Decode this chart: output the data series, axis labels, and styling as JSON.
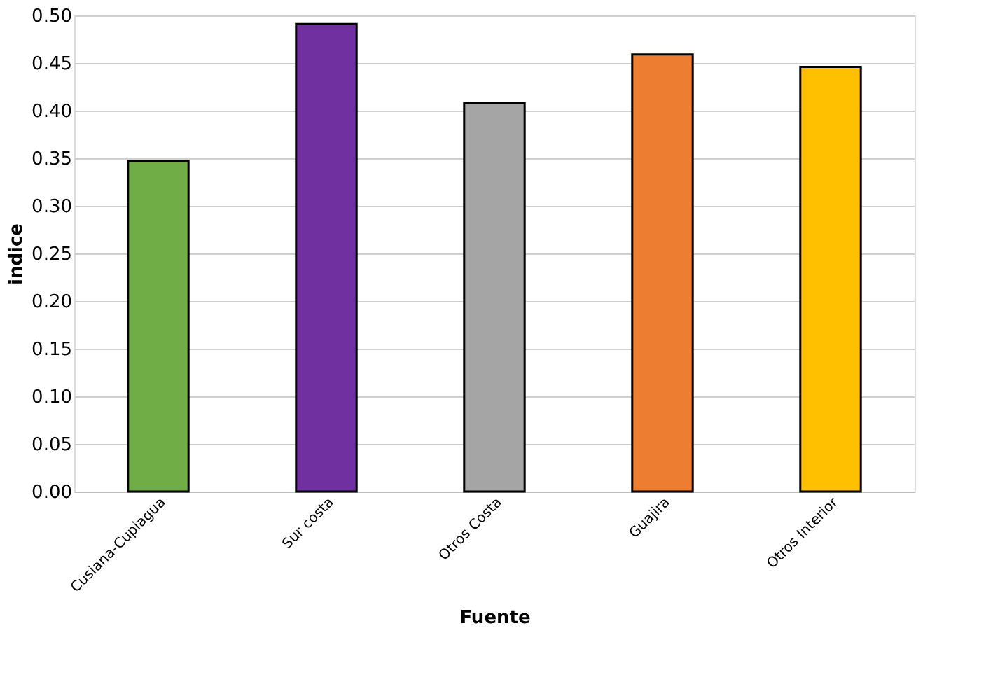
{
  "chart_data": {
    "type": "bar",
    "xlabel": "Fuente",
    "ylabel": "indice",
    "categories": [
      "Cusiana-Cupiagua",
      "Sur costa",
      "Otros Costa",
      "Guajira",
      "Otros Interior"
    ],
    "values": [
      0.347,
      0.491,
      0.408,
      0.459,
      0.446
    ],
    "colors": [
      "#70ad47",
      "#7030a0",
      "#a5a5a5",
      "#ed7d31",
      "#ffc000"
    ],
    "ylim": [
      0,
      0.5
    ],
    "yticks": [
      {
        "value": 0,
        "label": "0.00"
      },
      {
        "value": 0.05,
        "label": "0.05"
      },
      {
        "value": 0.1,
        "label": "0.10"
      },
      {
        "value": 0.15,
        "label": "0.15"
      },
      {
        "value": 0.2,
        "label": "0.20"
      },
      {
        "value": 0.25,
        "label": "0.25"
      },
      {
        "value": 0.3,
        "label": "0.30"
      },
      {
        "value": 0.35,
        "label": "0.35"
      },
      {
        "value": 0.4,
        "label": "0.40"
      },
      {
        "value": 0.45,
        "label": "0.45"
      },
      {
        "value": 0.5,
        "label": "0.50"
      }
    ],
    "grid": "y"
  }
}
